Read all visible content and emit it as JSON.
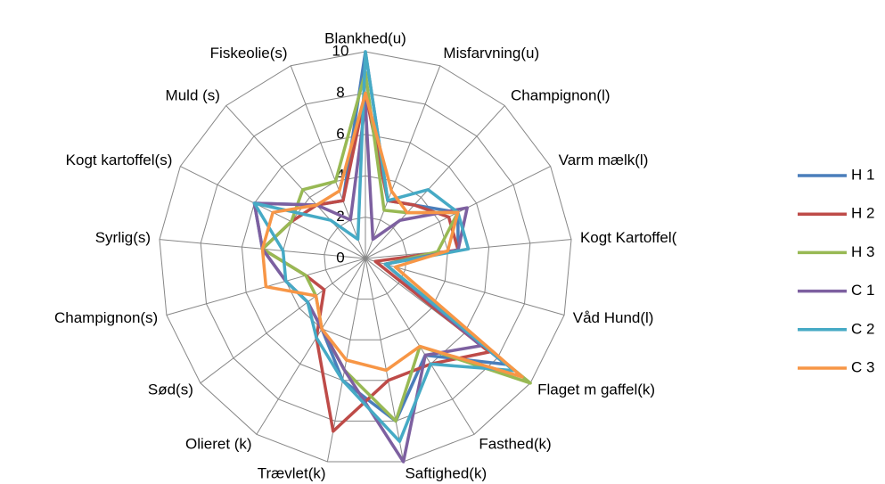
{
  "chart_data": {
    "type": "radar",
    "categories": [
      "Blankhed(u)",
      "Misfarvning(u)",
      "Champignon(l)",
      "Varm mælk(l)",
      "Kogt Kartoffel(",
      "Våd Hund(l)",
      "Flaget m gaffel(k)",
      "Fasthed(k)",
      "Saftighed(k)",
      "Trævlet(k)",
      "Olieret (k)",
      "Sød(s)",
      "Champignon(s)",
      "Syrlig(s)",
      "Kogt kartoffel(s)",
      "Muld (s)",
      "Fiskeolie(s)"
    ],
    "ylim": [
      0,
      10
    ],
    "yticks": [
      0,
      2,
      4,
      6,
      8,
      10
    ],
    "grid": true,
    "legend": "right",
    "series": [
      {
        "name": "H 1",
        "color": "#4a7ebb",
        "values": [
          10,
          3,
          3.5,
          5,
          4.5,
          1,
          8.5,
          5.5,
          8,
          6,
          4,
          3.5,
          4,
          5,
          6,
          3.5,
          3
        ]
      },
      {
        "name": "H 2",
        "color": "#be4b48",
        "values": [
          8,
          3,
          3.5,
          4.5,
          4.5,
          0.5,
          7.5,
          6,
          6,
          8.5,
          4.5,
          2.5,
          3,
          5,
          4,
          3.5,
          3
        ]
      },
      {
        "name": "H 3",
        "color": "#98b954",
        "values": [
          9,
          2.5,
          3,
          5,
          3.5,
          1,
          10,
          5,
          8,
          5.5,
          4,
          3,
          3,
          5,
          4,
          4.5,
          4
        ]
      },
      {
        "name": "C 1",
        "color": "#7d60a0",
        "values": [
          7.5,
          1,
          2.5,
          5.5,
          4.5,
          1,
          7,
          5.5,
          10,
          5.5,
          4,
          3.5,
          4,
          5,
          6,
          3.5,
          2
        ]
      },
      {
        "name": "C 2",
        "color": "#46aac5",
        "values": [
          10,
          3,
          4.5,
          5,
          5,
          1,
          9,
          6,
          9,
          6,
          4.5,
          3.5,
          4,
          4,
          6,
          2.5,
          1
        ]
      },
      {
        "name": "C 3",
        "color": "#f79646",
        "values": [
          8,
          3.5,
          3,
          5,
          4,
          1.5,
          9.5,
          5,
          5.5,
          5,
          4,
          3,
          5,
          5,
          5,
          3.5,
          3.5
        ]
      }
    ]
  }
}
